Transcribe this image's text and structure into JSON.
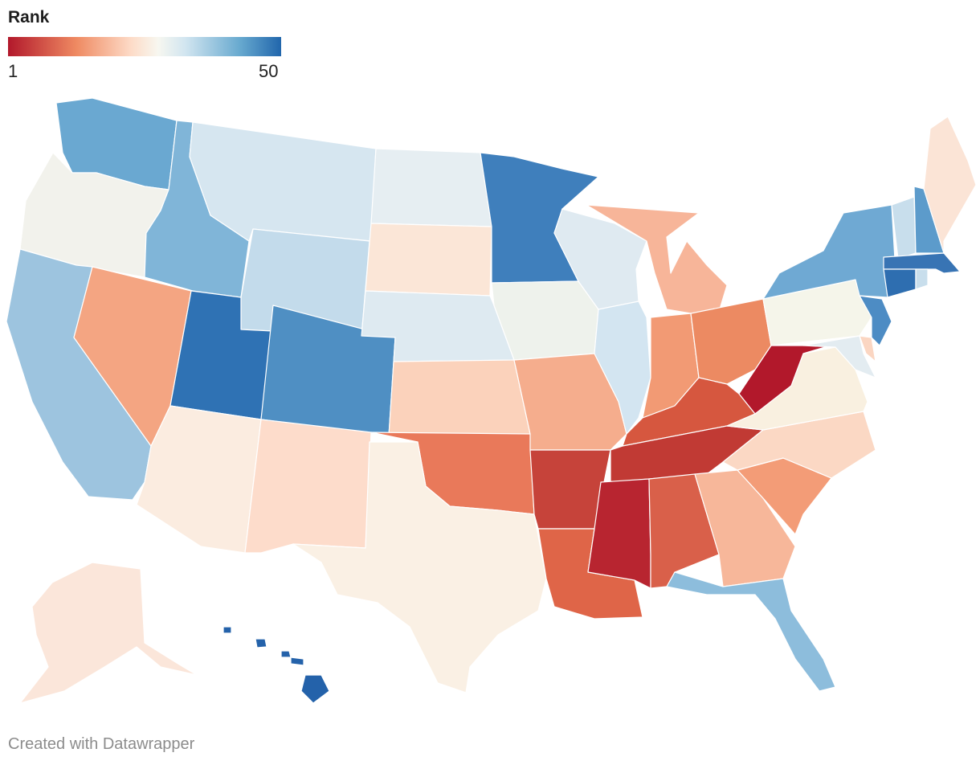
{
  "legend": {
    "title": "Rank",
    "min_label": "1",
    "max_label": "50"
  },
  "footer": {
    "credit": "Created with Datawrapper"
  },
  "colors": {
    "low": "#b2182b",
    "mid": "#f7f7f0",
    "high": "#2166ac"
  },
  "states": [
    {
      "id": "WA",
      "color": "#6aa8d1"
    },
    {
      "id": "OR",
      "color": "#f2f2ec"
    },
    {
      "id": "CA",
      "color": "#9dc4df"
    },
    {
      "id": "NV",
      "color": "#f4a582"
    },
    {
      "id": "ID",
      "color": "#80b5d8"
    },
    {
      "id": "MT",
      "color": "#d6e6f0"
    },
    {
      "id": "WY",
      "color": "#c3dbeb"
    },
    {
      "id": "UT",
      "color": "#2f72b4"
    },
    {
      "id": "AZ",
      "color": "#fbece0"
    },
    {
      "id": "CO",
      "color": "#4f8fc3"
    },
    {
      "id": "NM",
      "color": "#fddccb"
    },
    {
      "id": "ND",
      "color": "#e6eef2"
    },
    {
      "id": "SD",
      "color": "#fbe6d7"
    },
    {
      "id": "NE",
      "color": "#deeaf1"
    },
    {
      "id": "KS",
      "color": "#fbd2bb"
    },
    {
      "id": "OK",
      "color": "#e9795a"
    },
    {
      "id": "TX",
      "color": "#faf0e4"
    },
    {
      "id": "MN",
      "color": "#3f7fbc"
    },
    {
      "id": "IA",
      "color": "#eef2ec"
    },
    {
      "id": "MO",
      "color": "#f5ad8d"
    },
    {
      "id": "AR",
      "color": "#c6433a"
    },
    {
      "id": "LA",
      "color": "#df6548"
    },
    {
      "id": "WI",
      "color": "#dfeaf1"
    },
    {
      "id": "IL",
      "color": "#d3e5f1"
    },
    {
      "id": "MI",
      "color": "#f7b599"
    },
    {
      "id": "IN",
      "color": "#f29a74"
    },
    {
      "id": "OH",
      "color": "#ec8a62"
    },
    {
      "id": "KY",
      "color": "#d6573f"
    },
    {
      "id": "TN",
      "color": "#c13a34"
    },
    {
      "id": "MS",
      "color": "#b82530"
    },
    {
      "id": "AL",
      "color": "#d9604a"
    },
    {
      "id": "GA",
      "color": "#f7b79a"
    },
    {
      "id": "FL",
      "color": "#8dbddc"
    },
    {
      "id": "SC",
      "color": "#f39c77"
    },
    {
      "id": "NC",
      "color": "#fbd8c4"
    },
    {
      "id": "VA",
      "color": "#f9f0e0"
    },
    {
      "id": "WV",
      "color": "#b2182b"
    },
    {
      "id": "PA",
      "color": "#f5f5ea"
    },
    {
      "id": "NY",
      "color": "#6fa9d3"
    },
    {
      "id": "VT",
      "color": "#c8deec"
    },
    {
      "id": "NH",
      "color": "#5c9bcb"
    },
    {
      "id": "ME",
      "color": "#fbe4d6"
    },
    {
      "id": "MA",
      "color": "#3874b4"
    },
    {
      "id": "CT",
      "color": "#2e6eb0"
    },
    {
      "id": "RI",
      "color": "#c8deec"
    },
    {
      "id": "NJ",
      "color": "#4d8cc4"
    },
    {
      "id": "DE",
      "color": "#fbd6c2"
    },
    {
      "id": "MD",
      "color": "#e3ecf1"
    },
    {
      "id": "AK",
      "color": "#fbe6da"
    },
    {
      "id": "HI",
      "color": "#2462aa"
    }
  ]
}
